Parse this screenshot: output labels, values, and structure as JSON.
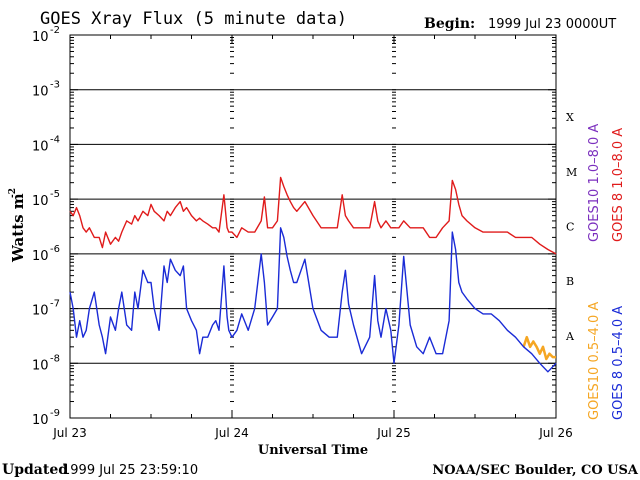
{
  "chart_data": {
    "type": "line",
    "title": "GOES Xray Flux (5 minute data)",
    "begin_label": "Begin:",
    "begin_value": "1999 Jul 23 0000UT",
    "xlabel": "Universal Time",
    "ylabel": "Watts m",
    "ylabel_exp": "-2",
    "y_scale": "log",
    "ylim": [
      1e-09,
      0.01
    ],
    "xlim": [
      0,
      3
    ],
    "x_ticks": [
      {
        "x": 0,
        "label": "Jul 23"
      },
      {
        "x": 1,
        "label": "Jul 24"
      },
      {
        "x": 2,
        "label": "Jul 25"
      },
      {
        "x": 3,
        "label": "Jul 26"
      }
    ],
    "y_ticks": [
      {
        "exp": -2,
        "base": "10",
        "sup": "-2"
      },
      {
        "exp": -3,
        "base": "10",
        "sup": "-3"
      },
      {
        "exp": -4,
        "base": "10",
        "sup": "-4"
      },
      {
        "exp": -5,
        "base": "10",
        "sup": "-5"
      },
      {
        "exp": -6,
        "base": "10",
        "sup": "-6"
      },
      {
        "exp": -7,
        "base": "10",
        "sup": "-7"
      },
      {
        "exp": -8,
        "base": "10",
        "sup": "-8"
      },
      {
        "exp": -9,
        "base": "10",
        "sup": "-9"
      }
    ],
    "flare_classes": [
      {
        "label": "X",
        "exp": -3.5
      },
      {
        "label": "M",
        "exp": -4.5
      },
      {
        "label": "C",
        "exp": -5.5
      },
      {
        "label": "B",
        "exp": -6.5
      },
      {
        "label": "A",
        "exp": -7.5
      }
    ],
    "legend": [
      {
        "label": "GOES10 1.0–8.0 A",
        "color": "#7b2fbe",
        "group": "long"
      },
      {
        "label": "GOES 8 1.0–8.0 A",
        "color": "#e01b1b",
        "group": "long"
      },
      {
        "label": "GOES10 0.5–4.0 A",
        "color": "#f5a623",
        "group": "short"
      },
      {
        "label": "GOES 8 0.5–4.0 A",
        "color": "#1a2bd6",
        "group": "short"
      }
    ],
    "series": [
      {
        "name": "GOES 8 1.0–8.0 A",
        "color": "#e01b1b",
        "x": [
          0.0,
          0.02,
          0.04,
          0.06,
          0.08,
          0.1,
          0.12,
          0.15,
          0.18,
          0.2,
          0.22,
          0.25,
          0.28,
          0.3,
          0.32,
          0.35,
          0.38,
          0.4,
          0.42,
          0.45,
          0.48,
          0.5,
          0.52,
          0.55,
          0.58,
          0.6,
          0.62,
          0.65,
          0.68,
          0.7,
          0.72,
          0.75,
          0.78,
          0.8,
          0.82,
          0.85,
          0.88,
          0.9,
          0.92,
          0.95,
          0.97,
          0.98,
          1.0,
          1.03,
          1.06,
          1.1,
          1.14,
          1.18,
          1.2,
          1.22,
          1.25,
          1.28,
          1.3,
          1.32,
          1.34,
          1.36,
          1.38,
          1.4,
          1.45,
          1.5,
          1.55,
          1.6,
          1.65,
          1.68,
          1.7,
          1.72,
          1.75,
          1.8,
          1.85,
          1.88,
          1.9,
          1.92,
          1.95,
          1.98,
          2.0,
          2.03,
          2.06,
          2.1,
          2.14,
          2.18,
          2.22,
          2.26,
          2.3,
          2.34,
          2.36,
          2.38,
          2.4,
          2.42,
          2.45,
          2.5,
          2.55,
          2.6,
          2.65,
          2.7,
          2.75,
          2.8,
          2.85,
          2.9,
          2.95,
          3.0
        ],
        "y": [
          6e-06,
          5e-06,
          7e-06,
          5e-06,
          3e-06,
          2.5e-06,
          3e-06,
          2e-06,
          2e-06,
          1.3e-06,
          2.5e-06,
          1.5e-06,
          2e-06,
          1.7e-06,
          2.5e-06,
          4e-06,
          3.5e-06,
          5e-06,
          4e-06,
          6e-06,
          5e-06,
          8e-06,
          6e-06,
          5e-06,
          4e-06,
          6e-06,
          5e-06,
          7e-06,
          9e-06,
          6e-06,
          7e-06,
          5e-06,
          4e-06,
          4.5e-06,
          4e-06,
          3.5e-06,
          3e-06,
          3e-06,
          2.5e-06,
          1.2e-05,
          3e-06,
          2.5e-06,
          2.5e-06,
          2e-06,
          3e-06,
          2.5e-06,
          2.5e-06,
          4e-06,
          1.1e-05,
          3e-06,
          3e-06,
          4e-06,
          2.5e-05,
          1.7e-05,
          1.2e-05,
          9e-06,
          7e-06,
          6e-06,
          9e-06,
          5e-06,
          3e-06,
          3e-06,
          3e-06,
          1.2e-05,
          5e-06,
          4e-06,
          3e-06,
          3e-06,
          3e-06,
          9e-06,
          4e-06,
          3e-06,
          4e-06,
          3e-06,
          3e-06,
          3e-06,
          4e-06,
          3e-06,
          3e-06,
          3e-06,
          2e-06,
          2e-06,
          3e-06,
          4e-06,
          2.2e-05,
          1.5e-05,
          8e-06,
          5e-06,
          4e-06,
          3e-06,
          2.5e-06,
          2.5e-06,
          2.5e-06,
          2.5e-06,
          2e-06,
          2e-06,
          2e-06,
          1.5e-06,
          1.2e-06,
          1e-06
        ]
      },
      {
        "name": "GOES10 0.5–4.0 A",
        "color": "#f5a623",
        "x": [
          2.8,
          2.82,
          2.84,
          2.86,
          2.88,
          2.9,
          2.92,
          2.94,
          2.96,
          2.98,
          3.0
        ],
        "y": [
          2e-08,
          3e-08,
          2e-08,
          2.5e-08,
          2e-08,
          1.5e-08,
          2e-08,
          1.2e-08,
          1.5e-08,
          1.3e-08,
          1.3e-08
        ]
      },
      {
        "name": "GOES 8 0.5–4.0 A",
        "color": "#1a2bd6",
        "x": [
          0.0,
          0.02,
          0.04,
          0.06,
          0.08,
          0.1,
          0.12,
          0.15,
          0.18,
          0.2,
          0.22,
          0.25,
          0.28,
          0.3,
          0.32,
          0.35,
          0.38,
          0.4,
          0.42,
          0.45,
          0.48,
          0.5,
          0.52,
          0.55,
          0.58,
          0.6,
          0.62,
          0.65,
          0.68,
          0.7,
          0.72,
          0.75,
          0.78,
          0.8,
          0.82,
          0.85,
          0.88,
          0.9,
          0.92,
          0.95,
          0.97,
          0.98,
          1.0,
          1.03,
          1.06,
          1.1,
          1.14,
          1.18,
          1.2,
          1.22,
          1.25,
          1.28,
          1.3,
          1.32,
          1.34,
          1.36,
          1.38,
          1.4,
          1.45,
          1.5,
          1.55,
          1.6,
          1.65,
          1.68,
          1.7,
          1.72,
          1.75,
          1.8,
          1.85,
          1.88,
          1.9,
          1.92,
          1.95,
          1.98,
          2.0,
          2.03,
          2.06,
          2.1,
          2.14,
          2.18,
          2.22,
          2.26,
          2.3,
          2.34,
          2.36,
          2.38,
          2.4,
          2.42,
          2.45,
          2.5,
          2.55,
          2.6,
          2.65,
          2.7,
          2.75,
          2.8,
          2.85,
          2.9,
          2.95,
          3.0
        ],
        "y": [
          2e-07,
          1e-07,
          3e-08,
          6e-08,
          3e-08,
          4e-08,
          1e-07,
          2e-07,
          5e-08,
          3e-08,
          1.5e-08,
          7e-08,
          4e-08,
          1e-07,
          2e-07,
          5e-08,
          4e-08,
          2e-07,
          1e-07,
          5e-07,
          3e-07,
          3e-07,
          1e-07,
          4e-08,
          6e-07,
          3e-07,
          8e-07,
          5e-07,
          4e-07,
          6e-07,
          1e-07,
          6e-08,
          4e-08,
          1.5e-08,
          3e-08,
          3e-08,
          5e-08,
          6e-08,
          4e-08,
          6e-07,
          7e-08,
          4e-08,
          3e-08,
          4e-08,
          8e-08,
          4e-08,
          1e-07,
          1e-06,
          3e-07,
          5e-08,
          7e-08,
          1e-07,
          3e-06,
          2e-06,
          9e-07,
          5e-07,
          3e-07,
          3e-07,
          8e-07,
          1e-07,
          4e-08,
          3e-08,
          3e-08,
          2e-07,
          5e-07,
          1.2e-07,
          5e-08,
          1.5e-08,
          3e-08,
          4e-07,
          6e-08,
          3e-08,
          1e-07,
          4e-08,
          1e-08,
          5e-08,
          9e-07,
          5e-08,
          2e-08,
          1.5e-08,
          3e-08,
          1.5e-08,
          1.5e-08,
          6e-08,
          2.5e-06,
          1.2e-06,
          3e-07,
          2e-07,
          1.5e-07,
          1e-07,
          8e-08,
          8e-08,
          6e-08,
          4e-08,
          3e-08,
          2e-08,
          1.5e-08,
          1e-08,
          7e-09,
          1e-08
        ]
      }
    ]
  },
  "footer": {
    "updated_label": "Updated",
    "updated_value": "1999 Jul 25 23:59:10",
    "source": "NOAA/SEC Boulder, CO USA"
  }
}
